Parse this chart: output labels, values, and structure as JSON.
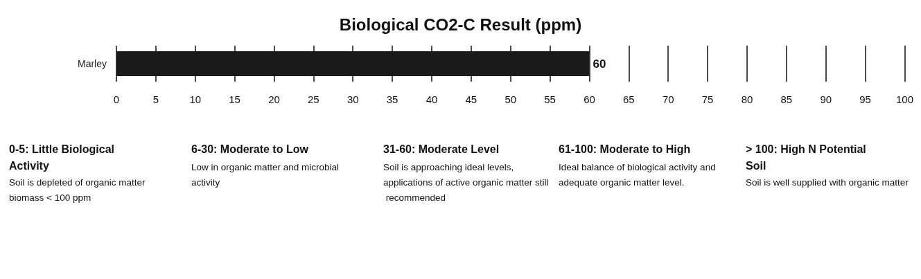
{
  "chart_data": {
    "type": "bar",
    "orientation": "horizontal",
    "title": "Biological CO2-C Result (ppm)",
    "categories": [
      "Marley"
    ],
    "values": [
      60
    ],
    "color": "#1a1a1a",
    "data_labels": true,
    "xlim": [
      0,
      100
    ],
    "xticks": [
      0,
      5,
      10,
      15,
      20,
      25,
      30,
      35,
      40,
      45,
      50,
      55,
      60,
      65,
      70,
      75,
      80,
      85,
      90,
      95,
      100
    ],
    "grid": "x",
    "annotations": [
      "0-5: Little Biological Activity",
      "Soil is depleted of organic matter biomass < 100 ppm",
      "6-30: Moderate to Low",
      "Low in organic matter and microbial activity",
      "31-60: Moderate Level",
      "Soil is approaching ideal levels, applications of active organic matter still recommended",
      "61-100: Moderate to High",
      "Ideal balance of biological activity and adequate organic matter level.",
      "> 100: High N Potential Soil",
      "Soil is well supplied with organic matter"
    ]
  }
}
